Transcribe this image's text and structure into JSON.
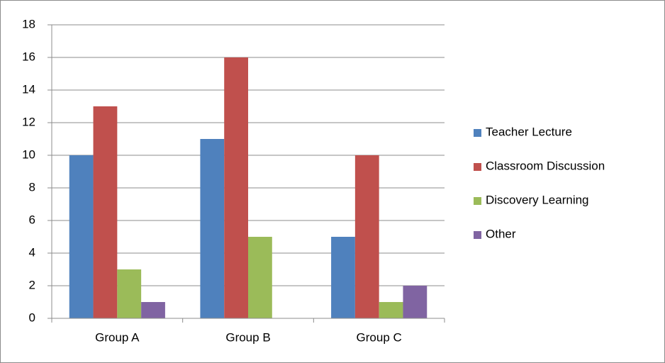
{
  "chart_data": {
    "type": "bar",
    "categories": [
      "Group A",
      "Group B",
      "Group C"
    ],
    "series": [
      {
        "name": "Teacher Lecture",
        "color": "#4f81bd",
        "values": [
          10,
          11,
          5
        ]
      },
      {
        "name": "Classroom Discussion",
        "color": "#c0504d",
        "values": [
          13,
          16,
          10
        ]
      },
      {
        "name": "Discovery Learning",
        "color": "#9bbb59",
        "values": [
          3,
          5,
          1
        ]
      },
      {
        "name": "Other",
        "color": "#8064a2",
        "values": [
          1,
          0,
          2
        ]
      }
    ],
    "ylim": [
      0,
      18
    ],
    "yticks": [
      0,
      2,
      4,
      6,
      8,
      10,
      12,
      14,
      16,
      18
    ],
    "grid": true,
    "legend": "right"
  }
}
